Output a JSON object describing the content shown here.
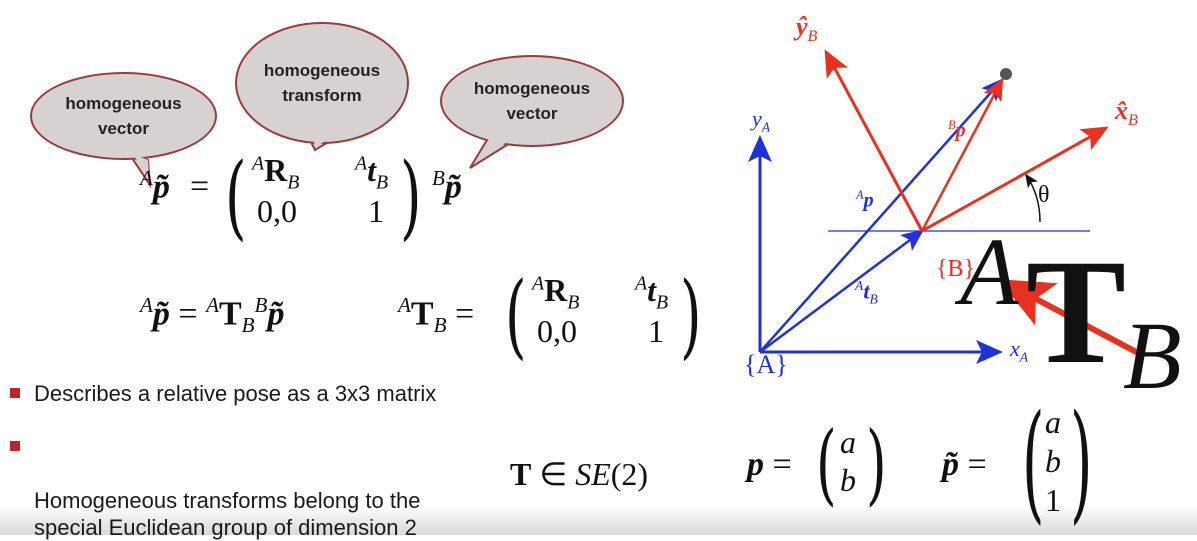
{
  "bubbles": {
    "left": "homogeneous\nvector",
    "middle": "homogeneous\ntransform",
    "right": "homogeneous\nvector"
  },
  "eq1": {
    "lhs_sup": "A",
    "lhs_sym": "p̃",
    "equals": "=",
    "r11_sup": "A",
    "r11": "R",
    "r11_sub": "B",
    "r12_sup": "A",
    "r12": "t",
    "r12_sub": "B",
    "r21": "0,0",
    "r22": "1",
    "rhs_sup": "B",
    "rhs_sym": "p̃"
  },
  "eq2": {
    "lhs_sup": "A",
    "lhs_sym": "p̃",
    "equals": "=",
    "t_sup": "A",
    "t_sym": "T",
    "t_sub": "B",
    "rhs_sup": "B",
    "rhs_sym": "p̃"
  },
  "eq3": {
    "t_sup": "A",
    "t_sym": "T",
    "t_sub": "B",
    "equals": "=",
    "r11_sup": "A",
    "r11": "R",
    "r11_sub": "B",
    "r12_sup": "A",
    "r12": "t",
    "r12_sub": "B",
    "r21": "0,0",
    "r22": "1"
  },
  "bullets": [
    "Describes a relative pose as a 3x3 matrix",
    "Homogeneous transforms belong to the\nspecial Euclidean group of dimension 2"
  ],
  "se2": {
    "T": "T",
    "in": "∈",
    "group": "SE",
    "arg": "(2)"
  },
  "diagram": {
    "yA": "y",
    "yA_sub": "A",
    "xA": "x",
    "xA_sub": "A",
    "frameA": "{A}",
    "frameB": "{B}",
    "yB": "ŷ",
    "yB_sub": "B",
    "xB": "x̂",
    "xB_sub": "B",
    "theta": "θ",
    "Ap_sup": "A",
    "Ap": "p",
    "Bp_sup": "B",
    "Bp": "p",
    "At_sup": "A",
    "At": "t",
    "At_sub": "B",
    "big_A": "A",
    "big_T": "T",
    "big_B": "B",
    "colors": {
      "blue": "#1e32d8",
      "red": "#e8311f",
      "gray": "#555555"
    }
  },
  "vectors": {
    "p": "p",
    "equals": "=",
    "p_vals": [
      "a",
      "b"
    ],
    "ptilde": "p̃",
    "ptilde_vals": [
      "a",
      "b",
      "1"
    ]
  }
}
